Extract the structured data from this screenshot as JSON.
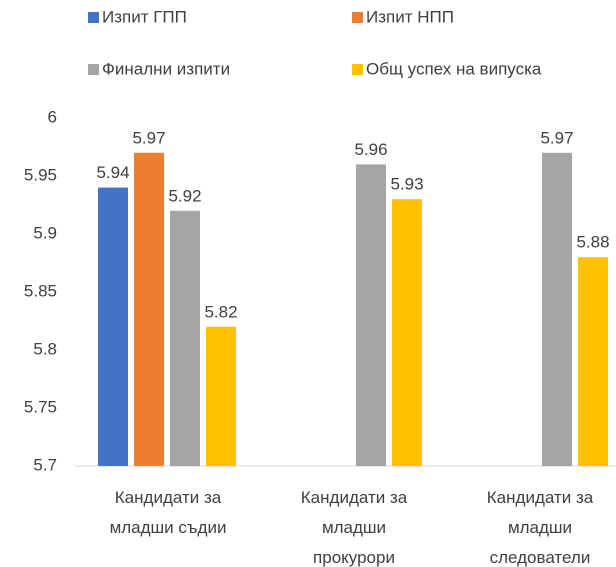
{
  "chart_data": {
    "type": "bar",
    "categories": [
      "Кандидати за младши съдии",
      "Кандидати за младши прокурори",
      "Кандидати за младши следователи"
    ],
    "series": [
      {
        "name": "Изпит ГПП",
        "color": "#4472c4",
        "values": [
          5.94,
          null,
          null
        ]
      },
      {
        "name": "Изпит НПП",
        "color": "#ed7d31",
        "values": [
          5.97,
          null,
          null
        ]
      },
      {
        "name": "Финални изпити",
        "color": "#a5a5a5",
        "values": [
          5.92,
          5.96,
          5.97
        ]
      },
      {
        "name": "Общ успех на випуска",
        "color": "#ffc000",
        "values": [
          5.82,
          5.93,
          5.88
        ]
      }
    ],
    "ylim": [
      5.7,
      6
    ],
    "yticks": [
      5.7,
      5.75,
      5.8,
      5.85,
      5.9,
      5.95,
      6
    ],
    "grid": false
  }
}
